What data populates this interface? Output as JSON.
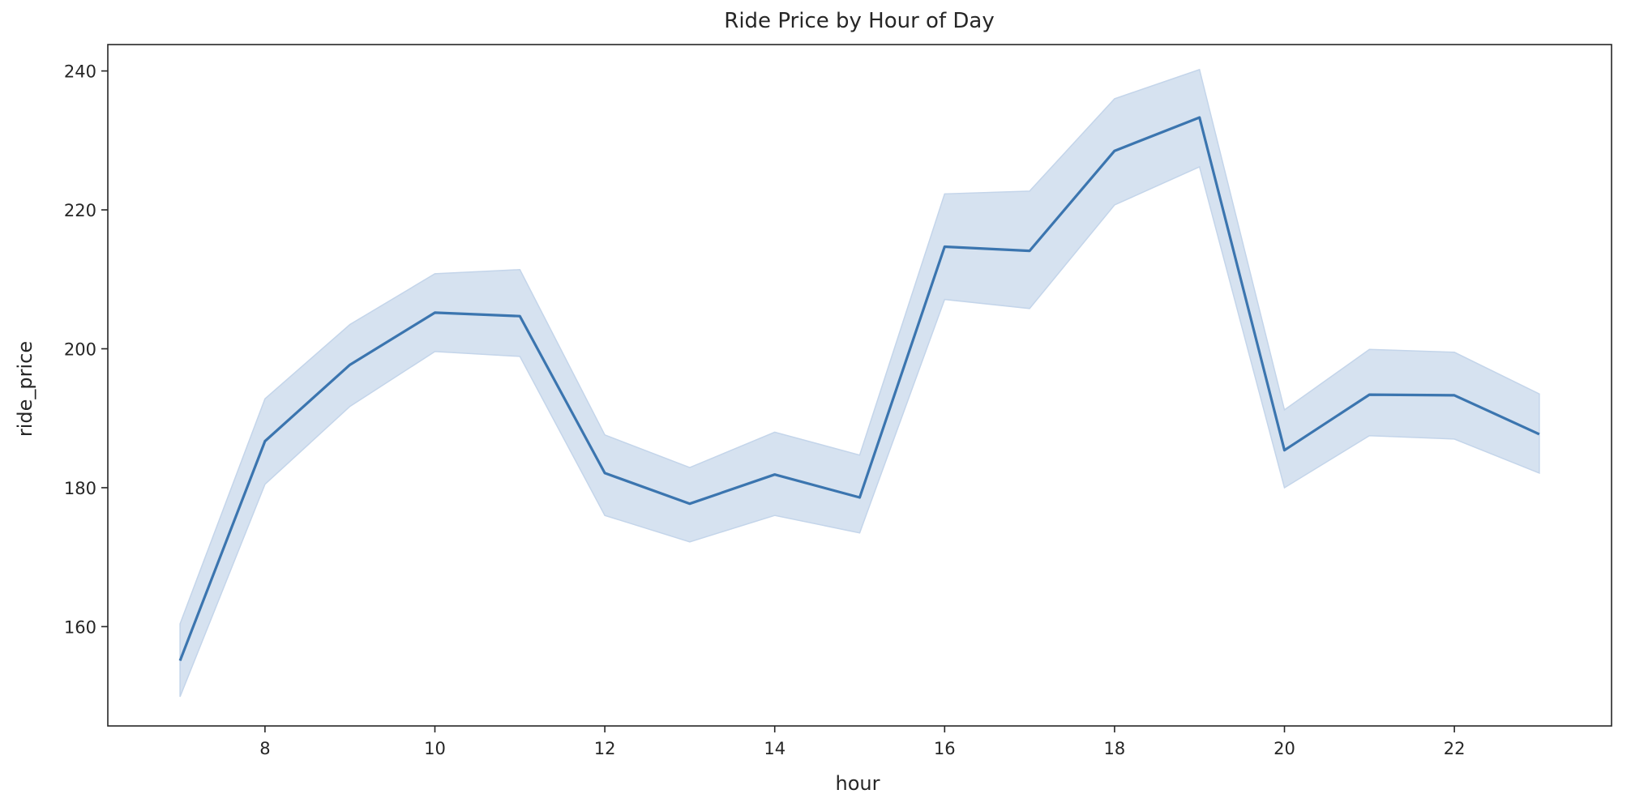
{
  "chart_data": {
    "type": "line",
    "title": "Ride Price by Hour of Day",
    "xlabel": "hour",
    "ylabel": "ride_price",
    "xlim": [
      6.15,
      23.85
    ],
    "ylim": [
      145.7,
      243.8
    ],
    "x_ticks": [
      8,
      10,
      12,
      14,
      16,
      18,
      20,
      22
    ],
    "y_ticks": [
      160,
      180,
      200,
      220,
      240
    ],
    "grid": false,
    "legend": "none",
    "colors": {
      "line": "#3b75af",
      "band": "#c4d5ea",
      "axis": "#262626"
    },
    "series": [
      {
        "x": [
          7,
          8,
          9,
          10,
          11,
          12,
          13,
          14,
          15,
          16,
          17,
          18,
          19,
          20,
          21,
          22,
          23
        ],
        "values": [
          155.1,
          186.7,
          197.7,
          205.2,
          204.7,
          182.1,
          177.7,
          181.9,
          178.6,
          214.7,
          214.1,
          228.5,
          233.3,
          185.4,
          193.4,
          193.3,
          187.7
        ],
        "ci_low": [
          149.9,
          180.5,
          191.7,
          199.6,
          198.9,
          176.0,
          172.2,
          176.0,
          173.5,
          207.1,
          205.8,
          220.7,
          226.2,
          180.0,
          187.5,
          187.0,
          182.1
        ],
        "ci_high": [
          160.4,
          192.8,
          203.5,
          210.8,
          211.4,
          187.6,
          182.9,
          188.0,
          184.7,
          222.3,
          222.7,
          236.0,
          240.2,
          191.2,
          199.9,
          199.5,
          193.5
        ]
      }
    ]
  }
}
